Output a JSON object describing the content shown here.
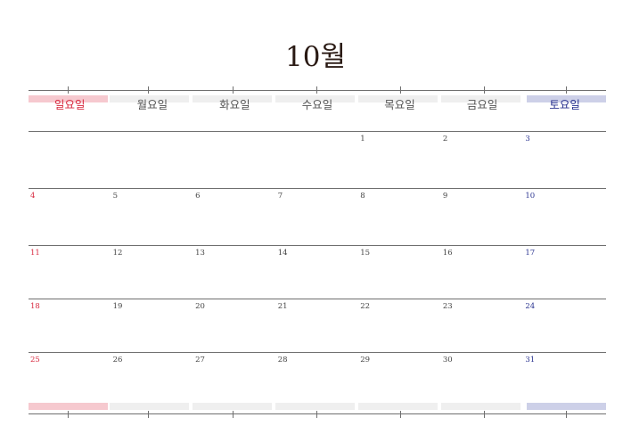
{
  "calendar": {
    "title": "10월",
    "weekdays": [
      "일요일",
      "월요일",
      "화요일",
      "수요일",
      "목요일",
      "금요일",
      "토요일"
    ],
    "weeks": [
      [
        "",
        "",
        "",
        "",
        "1",
        "2",
        "3"
      ],
      [
        "4",
        "5",
        "6",
        "7",
        "8",
        "9",
        "10"
      ],
      [
        "11",
        "12",
        "13",
        "14",
        "15",
        "16",
        "17"
      ],
      [
        "18",
        "19",
        "20",
        "21",
        "22",
        "23",
        "24"
      ],
      [
        "25",
        "26",
        "27",
        "28",
        "29",
        "30",
        "31"
      ]
    ]
  },
  "colors": {
    "sunday_text": "#d82a40",
    "saturday_text": "#2b3490",
    "sunday_bar": "#f6c9cf",
    "saturday_bar": "#cdd0e8",
    "weekday_bar": "#efefef",
    "rule": "#6f6f6f"
  }
}
